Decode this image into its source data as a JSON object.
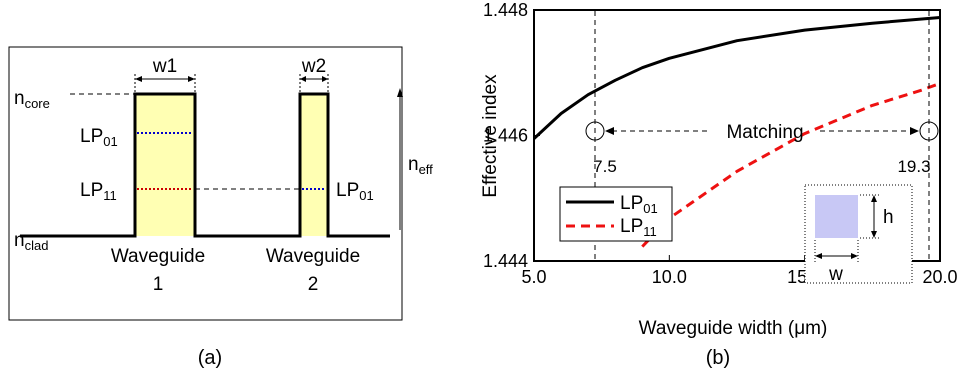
{
  "panel_a": {
    "label": "(a)",
    "width_labels": [
      "w1",
      "w2"
    ],
    "n_core": {
      "base": "n",
      "sub": "core"
    },
    "n_clad": {
      "base": "n",
      "sub": "clad"
    },
    "n_eff": {
      "base": "n",
      "sub": "eff"
    },
    "mode_lp01": {
      "base": "LP",
      "sub": "01"
    },
    "mode_lp11": {
      "base": "LP",
      "sub": "11"
    },
    "mode_lp01_wg2": {
      "base": "LP",
      "sub": "01"
    },
    "waveguide_1": {
      "name": "Waveguide",
      "number": "1"
    },
    "waveguide_2": {
      "name": "Waveguide",
      "number": "2"
    },
    "colors": {
      "core_fill": "#ffffb3",
      "lp01_line": "#0000cc",
      "lp11_line": "#cc0000"
    }
  },
  "panel_b": {
    "label": "(b)",
    "matching_label": "Matching",
    "match_points": [
      "7.5",
      "19.3"
    ],
    "inset_w": "w",
    "inset_h": "h",
    "inset_fill": "#c8c8f5"
  },
  "chart_data": {
    "type": "line",
    "xlabel": "Waveguide width (μm)",
    "ylabel": "Effective index",
    "xlim": [
      5.0,
      20.0
    ],
    "ylim": [
      1.444,
      1.448
    ],
    "x_ticks": [
      "5.0",
      "10.0",
      "15.0",
      "20.0"
    ],
    "y_ticks": [
      "1.444",
      "1.446",
      "1.448"
    ],
    "grid": false,
    "legend_position": "middle-left",
    "series": [
      {
        "name": "LP01",
        "name_base": "LP",
        "name_sub": "01",
        "color": "#000000",
        "style": "solid",
        "x": [
          5.0,
          6.0,
          7.0,
          8.0,
          9.0,
          10.0,
          12.5,
          15.0,
          17.5,
          20.0
        ],
        "y": [
          1.44595,
          1.44635,
          1.44665,
          1.44688,
          1.44708,
          1.44723,
          1.44751,
          1.44768,
          1.44779,
          1.44788
        ]
      },
      {
        "name": "LP11",
        "name_base": "LP",
        "name_sub": "11",
        "color": "#ee1111",
        "style": "dashed",
        "x": [
          9.0,
          10.0,
          12.5,
          15.0,
          17.5,
          19.3,
          20.0
        ],
        "y": [
          1.44423,
          1.44468,
          1.44543,
          1.44603,
          1.44648,
          1.44672,
          1.44683
        ]
      }
    ]
  }
}
